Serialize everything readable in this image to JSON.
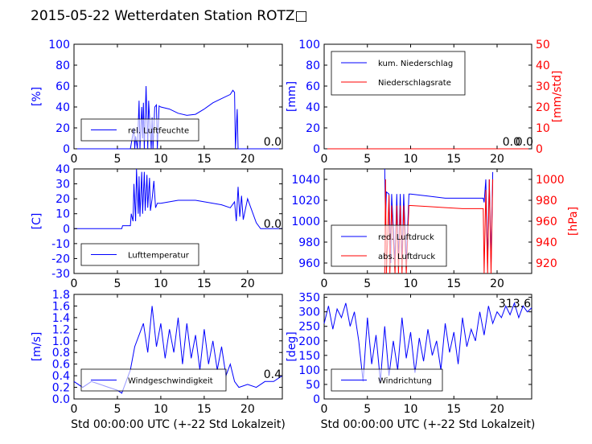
{
  "page_title": "2015-05-22 Wetterdaten Station ROTZ□",
  "chart_data": [
    {
      "type": "line",
      "xlim": [
        0,
        24
      ],
      "xticks": [
        0,
        5,
        10,
        15,
        20
      ],
      "ylim": [
        0,
        100
      ],
      "yticks": [
        0,
        20,
        40,
        60,
        80,
        100
      ],
      "ylabel": "[%]",
      "ylabel_color": "#0000ff",
      "last_value": "0.0",
      "legend": "bottom-left",
      "series": [
        {
          "name": "rel. Luftfeuchte",
          "color": "#0000ff",
          "x": [
            0,
            6.5,
            6.9,
            7.0,
            7.1,
            7.3,
            7.5,
            7.6,
            7.8,
            7.9,
            8.0,
            8.1,
            8.3,
            8.5,
            8.6,
            8.9,
            9.0,
            9.1,
            9.3,
            9.5,
            9.6,
            9.8,
            10,
            11,
            12,
            13,
            14,
            15,
            16,
            17,
            18,
            18.3,
            18.5,
            18.6,
            18.8,
            18.9,
            19.0,
            19.1,
            24
          ],
          "y": [
            0,
            0,
            20,
            0,
            12,
            0,
            46,
            0,
            40,
            10,
            44,
            0,
            60,
            0,
            46,
            0,
            30,
            0,
            40,
            42,
            0,
            41,
            40,
            38,
            34,
            32,
            33,
            38,
            44,
            48,
            52,
            56,
            54,
            0,
            38,
            0,
            0,
            0,
            0
          ]
        }
      ]
    },
    {
      "type": "line",
      "xlim": [
        0,
        24
      ],
      "xticks": [
        0,
        5,
        10,
        15,
        20
      ],
      "ylim": [
        0,
        100
      ],
      "yticks": [
        0,
        20,
        40,
        60,
        80,
        100
      ],
      "ylabel": "[mm]",
      "ylabel_color": "#0000ff",
      "y2lim": [
        0,
        50
      ],
      "y2ticks": [
        0,
        10,
        20,
        30,
        40,
        50
      ],
      "y2label": "[mm/std]",
      "y2label_color": "#ff0000",
      "last_value": "0.0",
      "last_value2": "0.0",
      "legend": "top-left",
      "series": [
        {
          "name": "kum. Niederschlag",
          "color": "#0000ff",
          "axis": "left",
          "x": [
            0,
            24
          ],
          "y": [
            0,
            0
          ]
        },
        {
          "name": "Niederschlagsrate",
          "color": "#ff0000",
          "axis": "right",
          "x": [
            0,
            24
          ],
          "y": [
            0,
            0
          ]
        }
      ]
    },
    {
      "type": "line",
      "xlim": [
        0,
        24
      ],
      "xticks": [
        0,
        5,
        10,
        15,
        20
      ],
      "ylim": [
        -30,
        40
      ],
      "yticks": [
        -30,
        -20,
        -10,
        0,
        10,
        20,
        30,
        40
      ],
      "ylabel": "[C]",
      "ylabel_color": "#0000ff",
      "last_value": "0.0",
      "legend": "bottom-left",
      "series": [
        {
          "name": "Lufttemperatur",
          "color": "#0000ff",
          "x": [
            0,
            5.5,
            5.6,
            6.5,
            6.6,
            6.8,
            6.9,
            7.1,
            7.2,
            7.4,
            7.5,
            7.6,
            7.8,
            7.9,
            8.1,
            8.2,
            8.4,
            8.5,
            8.7,
            8.8,
            9.0,
            9.2,
            9.4,
            9.6,
            10,
            11,
            12,
            13,
            14,
            15,
            16,
            17,
            18,
            18.5,
            18.7,
            18.9,
            19.1,
            19.3,
            19.5,
            20,
            21,
            21.5,
            24
          ],
          "y": [
            0,
            0,
            2,
            2,
            10,
            5,
            30,
            5,
            40,
            10,
            35,
            8,
            38,
            10,
            38,
            12,
            36,
            14,
            34,
            12,
            20,
            32,
            14,
            17,
            17,
            18,
            19,
            19,
            19,
            18,
            17,
            16,
            14,
            18,
            5,
            28,
            8,
            22,
            6,
            20,
            4,
            0,
            0
          ]
        }
      ]
    },
    {
      "type": "line",
      "xlim": [
        0,
        24
      ],
      "xticks": [
        0,
        5,
        10,
        15,
        20
      ],
      "ylim": [
        950,
        1050
      ],
      "yticks": [
        960,
        980,
        1000,
        1020,
        1040
      ],
      "ylabel": "",
      "y2lim": [
        910,
        1010
      ],
      "y2ticks": [
        920,
        940,
        960,
        980,
        1000
      ],
      "y2label": "[hPa]",
      "y2label_color": "#ff0000",
      "legend": "bottom-left",
      "series": [
        {
          "name": "red. Luftdruck",
          "color": "#0000ff",
          "axis": "left",
          "x": [
            7.0,
            7.1,
            7.2,
            7.5,
            7.7,
            7.8,
            8.2,
            8.4,
            8.6,
            8.8,
            9.0,
            9.2,
            9.5,
            9.8,
            10,
            12,
            14,
            16,
            18.4,
            18.5,
            18.7,
            18.9,
            19.1,
            19.3,
            19.5
          ],
          "y": [
            1050,
            1000,
            1028,
            1026,
            960,
            1026,
            960,
            1026,
            960,
            1026,
            960,
            1026,
            960,
            1026,
            1026,
            1024,
            1022,
            1022,
            1022,
            1018,
            1040,
            960,
            1040,
            960,
            1047
          ]
        },
        {
          "name": "abs. Luftdruck",
          "color": "#ff0000",
          "axis": "right",
          "x": [
            7.0,
            7.1,
            7.2,
            7.5,
            7.6,
            7.8,
            8.2,
            8.4,
            8.6,
            8.8,
            9.0,
            9.2,
            9.5,
            9.8,
            10,
            12,
            14,
            16,
            18.4,
            18.5,
            18.7,
            18.9,
            19.1,
            19.3,
            19.5
          ],
          "y": [
            910,
            1000,
            910,
            985,
            910,
            975,
            910,
            975,
            910,
            975,
            910,
            975,
            910,
            975,
            975,
            974,
            973,
            972,
            972,
            910,
            990,
            910,
            1000,
            910,
            1000
          ]
        }
      ]
    },
    {
      "type": "line",
      "xlim": [
        0,
        24
      ],
      "xticks": [
        0,
        5,
        10,
        15,
        20
      ],
      "ylim": [
        0,
        1.8
      ],
      "yticks": [
        0.0,
        0.2,
        0.4,
        0.6,
        0.8,
        1.0,
        1.2,
        1.4,
        1.6,
        1.8
      ],
      "ylabel": "[m/s]",
      "ylabel_color": "#0000ff",
      "xlabel": "Std 00:00:00 UTC (+-22 Std Lokalzeit)",
      "last_value": "0.4",
      "legend": "bottom-left",
      "series": [
        {
          "name": "Windgeschwindigkeit",
          "color": "#0000ff",
          "x": [
            0,
            1,
            2,
            3,
            4,
            5,
            5.5,
            6,
            6.5,
            7,
            7.5,
            8,
            8.5,
            9,
            9.5,
            10,
            10.5,
            11,
            11.5,
            12,
            12.5,
            13,
            13.5,
            14,
            14.5,
            15,
            15.5,
            16,
            16.5,
            17,
            17.5,
            18,
            18.5,
            19,
            20,
            21,
            22,
            23,
            24
          ],
          "y": [
            0.3,
            0.2,
            0.3,
            0.25,
            0.2,
            0.15,
            0.1,
            0.3,
            0.5,
            0.9,
            1.1,
            1.3,
            0.8,
            1.6,
            0.9,
            1.3,
            0.7,
            1.2,
            0.8,
            1.4,
            0.6,
            1.3,
            0.7,
            1.1,
            0.5,
            1.2,
            0.6,
            1.0,
            0.5,
            0.9,
            0.4,
            0.6,
            0.3,
            0.2,
            0.25,
            0.2,
            0.3,
            0.3,
            0.4
          ]
        }
      ]
    },
    {
      "type": "line",
      "xlim": [
        0,
        24
      ],
      "xticks": [
        0,
        5,
        10,
        15,
        20
      ],
      "ylim": [
        0,
        360
      ],
      "yticks": [
        0,
        50,
        100,
        150,
        200,
        250,
        300,
        350
      ],
      "ylabel": "[deg]",
      "ylabel_color": "#0000ff",
      "xlabel": "Std 00:00:00 UTC (+-22 Std Lokalzeit)",
      "last_value": "313.6",
      "legend": "bottom-left",
      "series": [
        {
          "name": "Windrichtung",
          "color": "#0000ff",
          "x": [
            0,
            0.5,
            1,
            1.5,
            2,
            2.5,
            3,
            3.5,
            4,
            4.5,
            5,
            5.5,
            6,
            6.5,
            7,
            7.5,
            8,
            8.5,
            9,
            9.5,
            10,
            10.5,
            11,
            11.5,
            12,
            12.5,
            13,
            13.5,
            14,
            14.5,
            15,
            15.5,
            16,
            16.5,
            17,
            17.5,
            18,
            18.5,
            19,
            19.5,
            20,
            20.5,
            21,
            21.5,
            22,
            22.5,
            23,
            23.5,
            24
          ],
          "y": [
            260,
            320,
            240,
            310,
            280,
            330,
            250,
            300,
            200,
            60,
            280,
            120,
            220,
            60,
            250,
            80,
            200,
            100,
            280,
            140,
            230,
            90,
            210,
            130,
            240,
            150,
            200,
            100,
            260,
            160,
            230,
            120,
            280,
            180,
            240,
            200,
            300,
            220,
            320,
            260,
            300,
            280,
            320,
            290,
            330,
            280,
            320,
            300,
            314
          ]
        }
      ]
    }
  ]
}
